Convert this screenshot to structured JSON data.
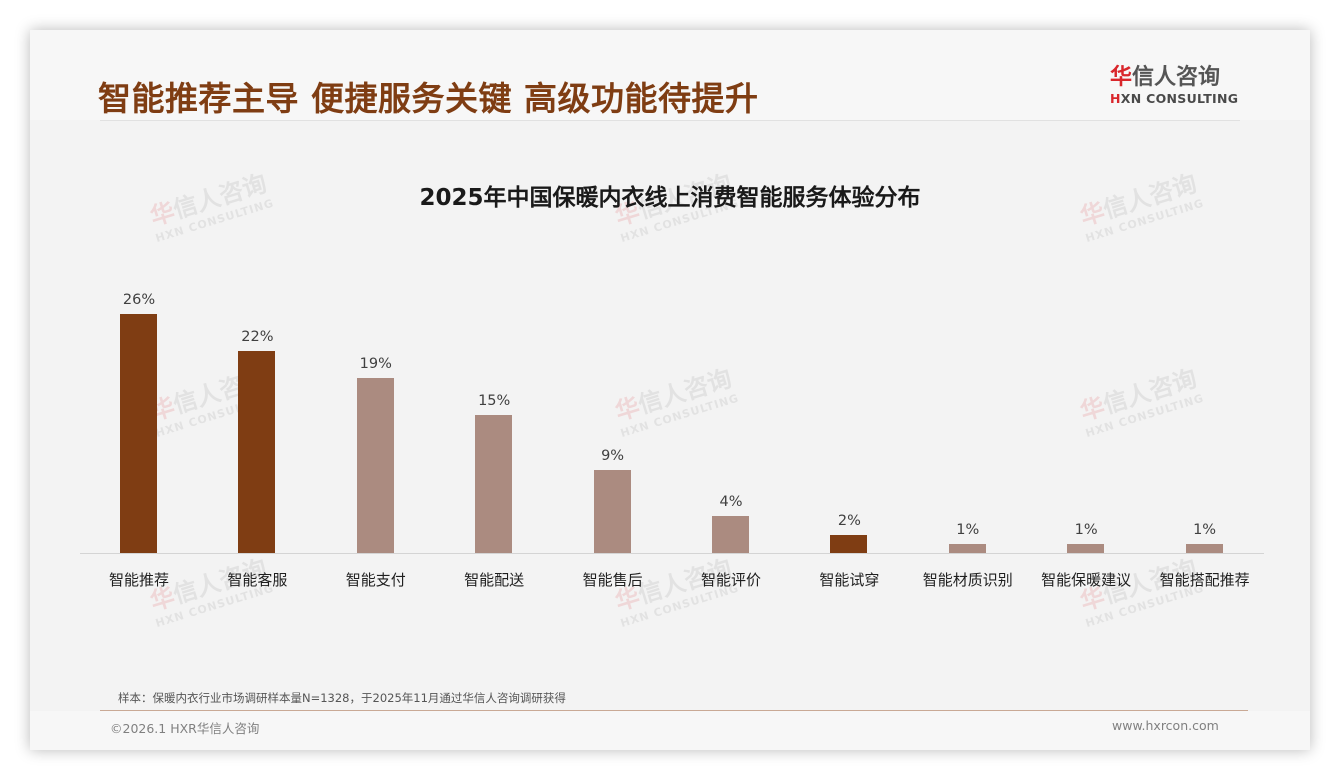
{
  "header": {
    "title": "智能推荐主导 便捷服务关键 高级功能待提升",
    "logo": {
      "cn_first": "华",
      "cn_rest": "信人咨询",
      "en_first": "H",
      "en_rest": "XN CONSULTING"
    }
  },
  "watermark": {
    "cn_first": "华",
    "cn_rest": "信人咨询",
    "en": "HXN CONSULTING"
  },
  "chart_data": {
    "type": "bar",
    "title": "2025年中国保暖内衣线上消费智能服务体验分布",
    "xlabel": "",
    "ylabel": "",
    "ylim": [
      0,
      30
    ],
    "grid": false,
    "legend": null,
    "categories": [
      "智能推荐",
      "智能客服",
      "智能支付",
      "智能配送",
      "智能售后",
      "智能评价",
      "智能试穿",
      "智能材质识别",
      "智能保暖建议",
      "智能搭配推荐"
    ],
    "values": [
      26,
      22,
      19,
      15,
      9,
      4,
      2,
      1,
      1,
      1
    ],
    "value_labels": [
      "26%",
      "22%",
      "19%",
      "15%",
      "9%",
      "4%",
      "2%",
      "1%",
      "1%",
      "1%"
    ],
    "highlighted": [
      true,
      true,
      false,
      false,
      false,
      false,
      true,
      false,
      false,
      false
    ],
    "colors": {
      "highlight": "#7f3d13",
      "normal": "#ab8b80"
    }
  },
  "footer": {
    "note": "样本：保暖内衣行业市场调研样本量N=1328，于2025年11月通过华信人咨询调研获得",
    "copyright": "©2026.1 HXR华信人咨询",
    "website": "www.hxrcon.com"
  }
}
